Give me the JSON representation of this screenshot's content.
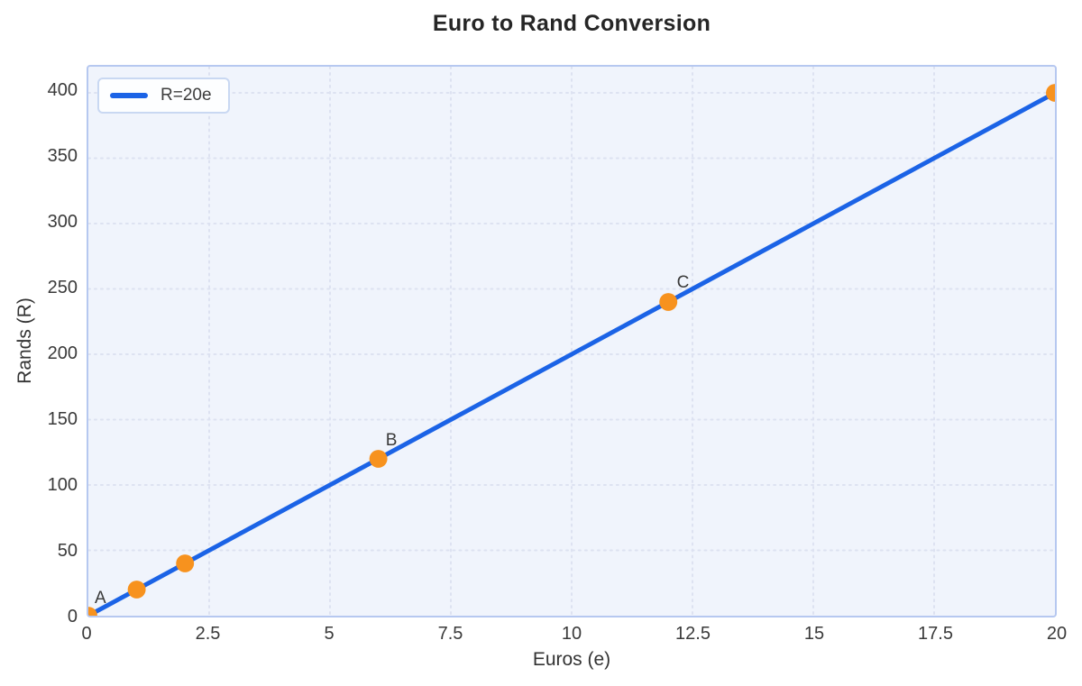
{
  "legend": {
    "label": "R=20e"
  },
  "colors": {
    "line_blue": "#1b63e6",
    "marker_orange": "#f7921e",
    "plot_background": "#f0f4fc",
    "plot_border": "#b6c8f0",
    "gridline": "#dde2f1",
    "text_dark": "#3a3a3a"
  },
  "chart_data": {
    "type": "line",
    "title": "Euro to Rand Conversion",
    "xlabel": "Euros (e)",
    "ylabel": "Rands (R)",
    "xlim": [
      0,
      20
    ],
    "ylim": [
      0,
      420
    ],
    "x_ticks": [
      0,
      2.5,
      5,
      7.5,
      10,
      12.5,
      15,
      17.5,
      20
    ],
    "y_ticks": [
      0,
      50,
      100,
      150,
      200,
      250,
      300,
      350,
      400
    ],
    "grid": "dotted",
    "legend_position": "top-left",
    "series": [
      {
        "name": "R=20e",
        "x": [
          0,
          20
        ],
        "y": [
          0,
          400
        ],
        "color": "#1b63e6"
      }
    ],
    "points": [
      {
        "x": 0,
        "y": 0,
        "label": "A"
      },
      {
        "x": 1,
        "y": 20,
        "label": ""
      },
      {
        "x": 2,
        "y": 40,
        "label": ""
      },
      {
        "x": 6,
        "y": 120,
        "label": "B"
      },
      {
        "x": 12,
        "y": 240,
        "label": "C"
      },
      {
        "x": 20,
        "y": 400,
        "label": ""
      }
    ],
    "marker_color": "#f7921e"
  }
}
